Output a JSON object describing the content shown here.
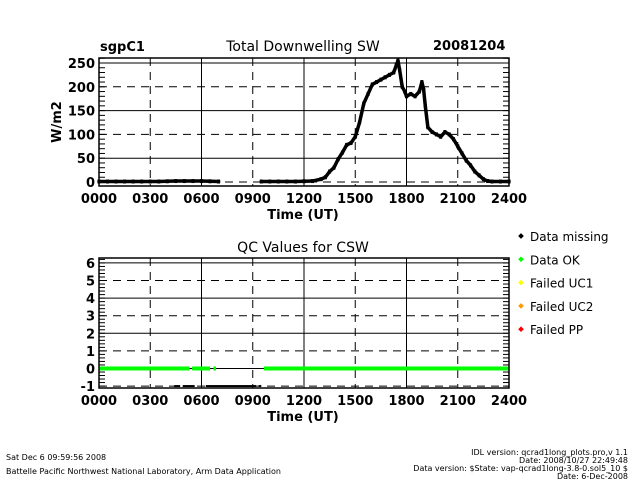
{
  "footer": {
    "left_line1": "Sat Dec  6 09:59:56 2008",
    "left_line2": "Battelle Pacific Northwest National Laboratory, Arm Data Application",
    "right_line1": "IDL version: qcrad1long_plots.pro,v 1.1",
    "right_line2": "Date: 2008/10/27 22:49:48",
    "right_line3": "Data version: $State: vap-qcrad1long-3.8-0.sol5_10 $",
    "right_line4": "Date: 6-Dec-2008"
  },
  "chart_data": [
    {
      "type": "scatter",
      "site": "sgpC1",
      "title": "Total Downwelling SW",
      "date": "20081204",
      "xlabel": "Time (UT)",
      "ylabel": "W/m2",
      "xlim": [
        0,
        24
      ],
      "ylim": [
        -8.4,
        260.5
      ],
      "xticks": [
        0,
        3,
        6,
        9,
        12,
        15,
        18,
        21,
        24
      ],
      "xtick_labels": [
        "0000",
        "0300",
        "0600",
        "0900",
        "1200",
        "1500",
        "1800",
        "2100",
        "2400"
      ],
      "yticks": [
        0,
        50,
        100,
        150,
        200,
        250
      ],
      "ytick_labels": [
        "0",
        "50",
        "100",
        "150",
        "200",
        "250"
      ],
      "grid": true,
      "x": [
        0,
        0.5,
        1,
        1.5,
        2,
        2.5,
        3,
        3.5,
        4,
        4.5,
        5,
        5.5,
        6,
        6.5,
        7,
        9.5,
        10,
        10.5,
        11,
        11.5,
        12,
        12.5,
        13,
        13.25,
        13.5,
        13.75,
        14,
        14.25,
        14.5,
        14.75,
        15,
        15.25,
        15.5,
        15.75,
        16,
        16.25,
        16.5,
        16.75,
        17,
        17.25,
        17.4,
        17.5,
        17.6,
        17.75,
        17.9,
        18,
        18.25,
        18.5,
        18.75,
        18.9,
        19,
        19.1,
        19.25,
        19.5,
        19.75,
        20,
        20.25,
        20.5,
        20.75,
        21,
        21.25,
        21.5,
        21.75,
        22,
        22.25,
        22.5,
        22.75,
        23,
        23.5,
        24
      ],
      "y": [
        1,
        1,
        1,
        1,
        1,
        1,
        1,
        1,
        1.5,
        2,
        2,
        2,
        2,
        1.5,
        1,
        1,
        1,
        1,
        1,
        1,
        1.5,
        2,
        6,
        10,
        22,
        30,
        48,
        62,
        78,
        82,
        95,
        125,
        165,
        185,
        205,
        210,
        215,
        220,
        225,
        230,
        245,
        255,
        235,
        200,
        190,
        180,
        185,
        180,
        190,
        210,
        195,
        160,
        115,
        105,
        100,
        95,
        105,
        100,
        90,
        75,
        60,
        45,
        35,
        22,
        14,
        6,
        2,
        1,
        1,
        1
      ]
    },
    {
      "type": "scatter",
      "title": "QC Values for CSW",
      "xlabel": "Time (UT)",
      "ylabel": "",
      "xlim": [
        0,
        24
      ],
      "ylim": [
        -1.11,
        6.28
      ],
      "xticks": [
        0,
        3,
        6,
        9,
        12,
        15,
        18,
        21,
        24
      ],
      "xtick_labels": [
        "0000",
        "0300",
        "0600",
        "0900",
        "1200",
        "1500",
        "1800",
        "2100",
        "2400"
      ],
      "yticks": [
        -1,
        0,
        1,
        2,
        3,
        4,
        5,
        6
      ],
      "ytick_labels": [
        "-1",
        "0",
        "1",
        "2",
        "3",
        "4",
        "5",
        "6"
      ],
      "grid": true,
      "legend_position": "right",
      "legend": [
        {
          "label": "Data missing",
          "color": "#000000"
        },
        {
          "label": "Data OK",
          "color": "#00ff00"
        },
        {
          "label": "Failed UC1",
          "color": "#ffff00"
        },
        {
          "label": "Failed UC2",
          "color": "#ff9900"
        },
        {
          "label": "Failed PP",
          "color": "#ff0000"
        }
      ],
      "segments": [
        {
          "category": "Data OK",
          "value": 0,
          "start": 0.0,
          "end": 5.3
        },
        {
          "category": "Data OK",
          "value": 0,
          "start": 5.45,
          "end": 6.5
        },
        {
          "category": "Data OK",
          "value": 0,
          "start": 6.7,
          "end": 6.85
        },
        {
          "category": "Data OK",
          "value": 0,
          "start": 9.65,
          "end": 24.0
        },
        {
          "category": "Data missing",
          "value": -1,
          "start": 4.4,
          "end": 4.75
        },
        {
          "category": "Data missing",
          "value": -1,
          "start": 4.9,
          "end": 5.6
        },
        {
          "category": "Data missing",
          "value": -1,
          "start": 6.25,
          "end": 9.2
        },
        {
          "category": "Data missing",
          "value": -1,
          "start": 9.35,
          "end": 9.5
        }
      ]
    }
  ]
}
